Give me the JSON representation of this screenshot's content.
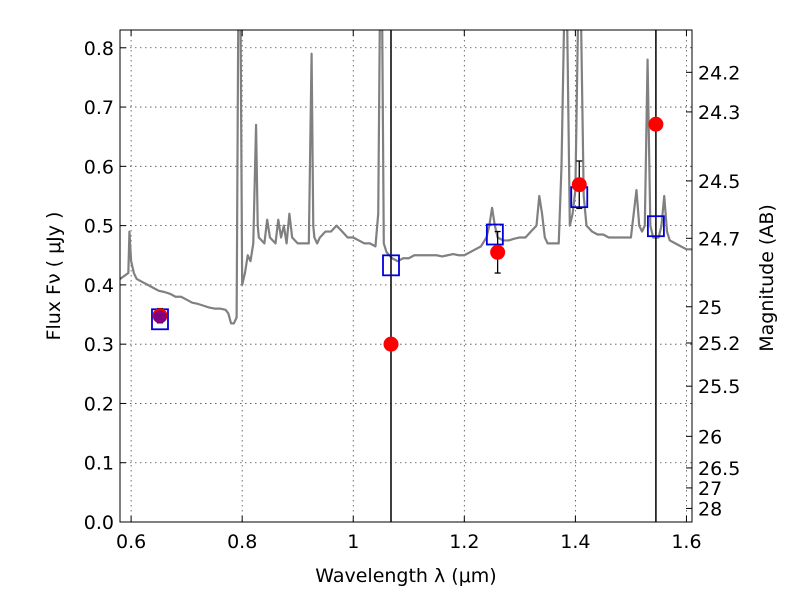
{
  "chart_data": {
    "type": "scatter",
    "xlabel": "Wavelength  λ (μm)",
    "ylabel": "Flux  Fν  ( μJy )",
    "ylabel_right": "Magnitude (AB)",
    "xlim": [
      0.58,
      1.61
    ],
    "ylim": [
      0.0,
      0.83
    ],
    "grid": true,
    "x_ticks": [
      0.6,
      0.8,
      1.0,
      1.2,
      1.4,
      1.6
    ],
    "x_tick_labels": [
      "0.6",
      "0.8",
      "1",
      "1.2",
      "1.4",
      "1.6"
    ],
    "y_ticks": [
      0.0,
      0.1,
      0.2,
      0.3,
      0.4,
      0.5,
      0.6,
      0.7,
      0.8
    ],
    "y_tick_labels": [
      "0.0",
      "0.1",
      "0.2",
      "0.3",
      "0.4",
      "0.5",
      "0.6",
      "0.7",
      "0.8"
    ],
    "right_ticks": [
      {
        "flux": 0.7586,
        "label": "24.2"
      },
      {
        "flux": 0.6918,
        "label": "24.3"
      },
      {
        "flux": 0.5754,
        "label": "24.5"
      },
      {
        "flux": 0.4786,
        "label": "24.7"
      },
      {
        "flux": 0.3631,
        "label": "25"
      },
      {
        "flux": 0.302,
        "label": "25.2"
      },
      {
        "flux": 0.2291,
        "label": "25.5"
      },
      {
        "flux": 0.1445,
        "label": "26"
      },
      {
        "flux": 0.0912,
        "label": "26.5"
      },
      {
        "flux": 0.0575,
        "label": "27"
      },
      {
        "flux": 0.0229,
        "label": "28"
      }
    ],
    "vertical_lines": [
      1.068,
      1.545
    ],
    "series": [
      {
        "type": "line",
        "color": "#808080",
        "points": [
          [
            0.58,
            0.41
          ],
          [
            0.595,
            0.42
          ],
          [
            0.597,
            0.49
          ],
          [
            0.6,
            0.44
          ],
          [
            0.605,
            0.42
          ],
          [
            0.61,
            0.41
          ],
          [
            0.62,
            0.405
          ],
          [
            0.63,
            0.4
          ],
          [
            0.64,
            0.395
          ],
          [
            0.65,
            0.39
          ],
          [
            0.66,
            0.388
          ],
          [
            0.67,
            0.385
          ],
          [
            0.68,
            0.38
          ],
          [
            0.69,
            0.38
          ],
          [
            0.7,
            0.375
          ],
          [
            0.71,
            0.37
          ],
          [
            0.72,
            0.368
          ],
          [
            0.73,
            0.365
          ],
          [
            0.74,
            0.362
          ],
          [
            0.75,
            0.36
          ],
          [
            0.76,
            0.36
          ],
          [
            0.77,
            0.358
          ],
          [
            0.775,
            0.352
          ],
          [
            0.78,
            0.335
          ],
          [
            0.785,
            0.335
          ],
          [
            0.79,
            0.345
          ],
          [
            0.793,
            0.86
          ],
          [
            0.797,
            0.86
          ],
          [
            0.8,
            0.4
          ],
          [
            0.805,
            0.42
          ],
          [
            0.81,
            0.45
          ],
          [
            0.815,
            0.44
          ],
          [
            0.82,
            0.47
          ],
          [
            0.825,
            0.67
          ],
          [
            0.828,
            0.5
          ],
          [
            0.83,
            0.48
          ],
          [
            0.84,
            0.47
          ],
          [
            0.845,
            0.51
          ],
          [
            0.85,
            0.48
          ],
          [
            0.86,
            0.47
          ],
          [
            0.865,
            0.51
          ],
          [
            0.87,
            0.48
          ],
          [
            0.875,
            0.5
          ],
          [
            0.88,
            0.47
          ],
          [
            0.885,
            0.52
          ],
          [
            0.89,
            0.48
          ],
          [
            0.9,
            0.47
          ],
          [
            0.91,
            0.47
          ],
          [
            0.92,
            0.47
          ],
          [
            0.925,
            0.79
          ],
          [
            0.928,
            0.5
          ],
          [
            0.93,
            0.48
          ],
          [
            0.935,
            0.47
          ],
          [
            0.94,
            0.48
          ],
          [
            0.95,
            0.49
          ],
          [
            0.96,
            0.49
          ],
          [
            0.97,
            0.5
          ],
          [
            0.98,
            0.49
          ],
          [
            0.99,
            0.48
          ],
          [
            1.0,
            0.48
          ],
          [
            1.01,
            0.475
          ],
          [
            1.02,
            0.47
          ],
          [
            1.03,
            0.47
          ],
          [
            1.04,
            0.465
          ],
          [
            1.045,
            0.52
          ],
          [
            1.048,
            0.86
          ],
          [
            1.052,
            0.86
          ],
          [
            1.055,
            0.47
          ],
          [
            1.06,
            0.455
          ],
          [
            1.07,
            0.445
          ],
          [
            1.08,
            0.44
          ],
          [
            1.09,
            0.445
          ],
          [
            1.1,
            0.445
          ],
          [
            1.11,
            0.45
          ],
          [
            1.12,
            0.45
          ],
          [
            1.13,
            0.45
          ],
          [
            1.14,
            0.45
          ],
          [
            1.15,
            0.45
          ],
          [
            1.16,
            0.448
          ],
          [
            1.17,
            0.45
          ],
          [
            1.18,
            0.452
          ],
          [
            1.19,
            0.45
          ],
          [
            1.2,
            0.45
          ],
          [
            1.21,
            0.455
          ],
          [
            1.22,
            0.46
          ],
          [
            1.23,
            0.465
          ],
          [
            1.24,
            0.48
          ],
          [
            1.245,
            0.5
          ],
          [
            1.25,
            0.53
          ],
          [
            1.255,
            0.5
          ],
          [
            1.26,
            0.48
          ],
          [
            1.27,
            0.475
          ],
          [
            1.28,
            0.475
          ],
          [
            1.29,
            0.478
          ],
          [
            1.3,
            0.48
          ],
          [
            1.31,
            0.48
          ],
          [
            1.32,
            0.49
          ],
          [
            1.33,
            0.5
          ],
          [
            1.335,
            0.55
          ],
          [
            1.34,
            0.52
          ],
          [
            1.345,
            0.48
          ],
          [
            1.35,
            0.47
          ],
          [
            1.36,
            0.47
          ],
          [
            1.37,
            0.47
          ],
          [
            1.375,
            0.6
          ],
          [
            1.38,
            0.86
          ],
          [
            1.385,
            0.86
          ],
          [
            1.39,
            0.5
          ],
          [
            1.395,
            0.52
          ],
          [
            1.4,
            0.56
          ],
          [
            1.405,
            0.86
          ],
          [
            1.41,
            0.86
          ],
          [
            1.415,
            0.55
          ],
          [
            1.42,
            0.5
          ],
          [
            1.43,
            0.49
          ],
          [
            1.44,
            0.485
          ],
          [
            1.45,
            0.485
          ],
          [
            1.46,
            0.48
          ],
          [
            1.47,
            0.48
          ],
          [
            1.48,
            0.48
          ],
          [
            1.49,
            0.48
          ],
          [
            1.5,
            0.48
          ],
          [
            1.505,
            0.52
          ],
          [
            1.51,
            0.56
          ],
          [
            1.515,
            0.5
          ],
          [
            1.52,
            0.49
          ],
          [
            1.525,
            0.5
          ],
          [
            1.53,
            0.78
          ],
          [
            1.535,
            0.5
          ],
          [
            1.54,
            0.48
          ],
          [
            1.55,
            0.48
          ],
          [
            1.555,
            0.5
          ],
          [
            1.56,
            0.55
          ],
          [
            1.565,
            0.49
          ],
          [
            1.57,
            0.475
          ],
          [
            1.58,
            0.47
          ],
          [
            1.59,
            0.465
          ],
          [
            1.6,
            0.46
          ],
          [
            1.61,
            0.46
          ]
        ]
      },
      {
        "type": "scatter",
        "marker": "open-square",
        "color": "#0000dd",
        "points": [
          [
            0.652,
            0.342
          ],
          [
            1.068,
            0.433
          ],
          [
            1.255,
            0.485
          ],
          [
            1.407,
            0.548
          ],
          [
            1.545,
            0.499
          ]
        ]
      },
      {
        "type": "scatter",
        "marker": "filled-circle",
        "color": "#ff0000",
        "points": [
          [
            0.652,
            0.348
          ],
          [
            1.068,
            0.3
          ],
          [
            1.26,
            0.455
          ],
          [
            1.407,
            0.569
          ],
          [
            1.545,
            0.671
          ]
        ],
        "errors": [
          0.012,
          null,
          0.035,
          0.04,
          null
        ]
      },
      {
        "type": "scatter",
        "marker": "filled-circle",
        "color": "#800080",
        "points": [
          [
            0.652,
            0.346
          ]
        ]
      }
    ]
  }
}
